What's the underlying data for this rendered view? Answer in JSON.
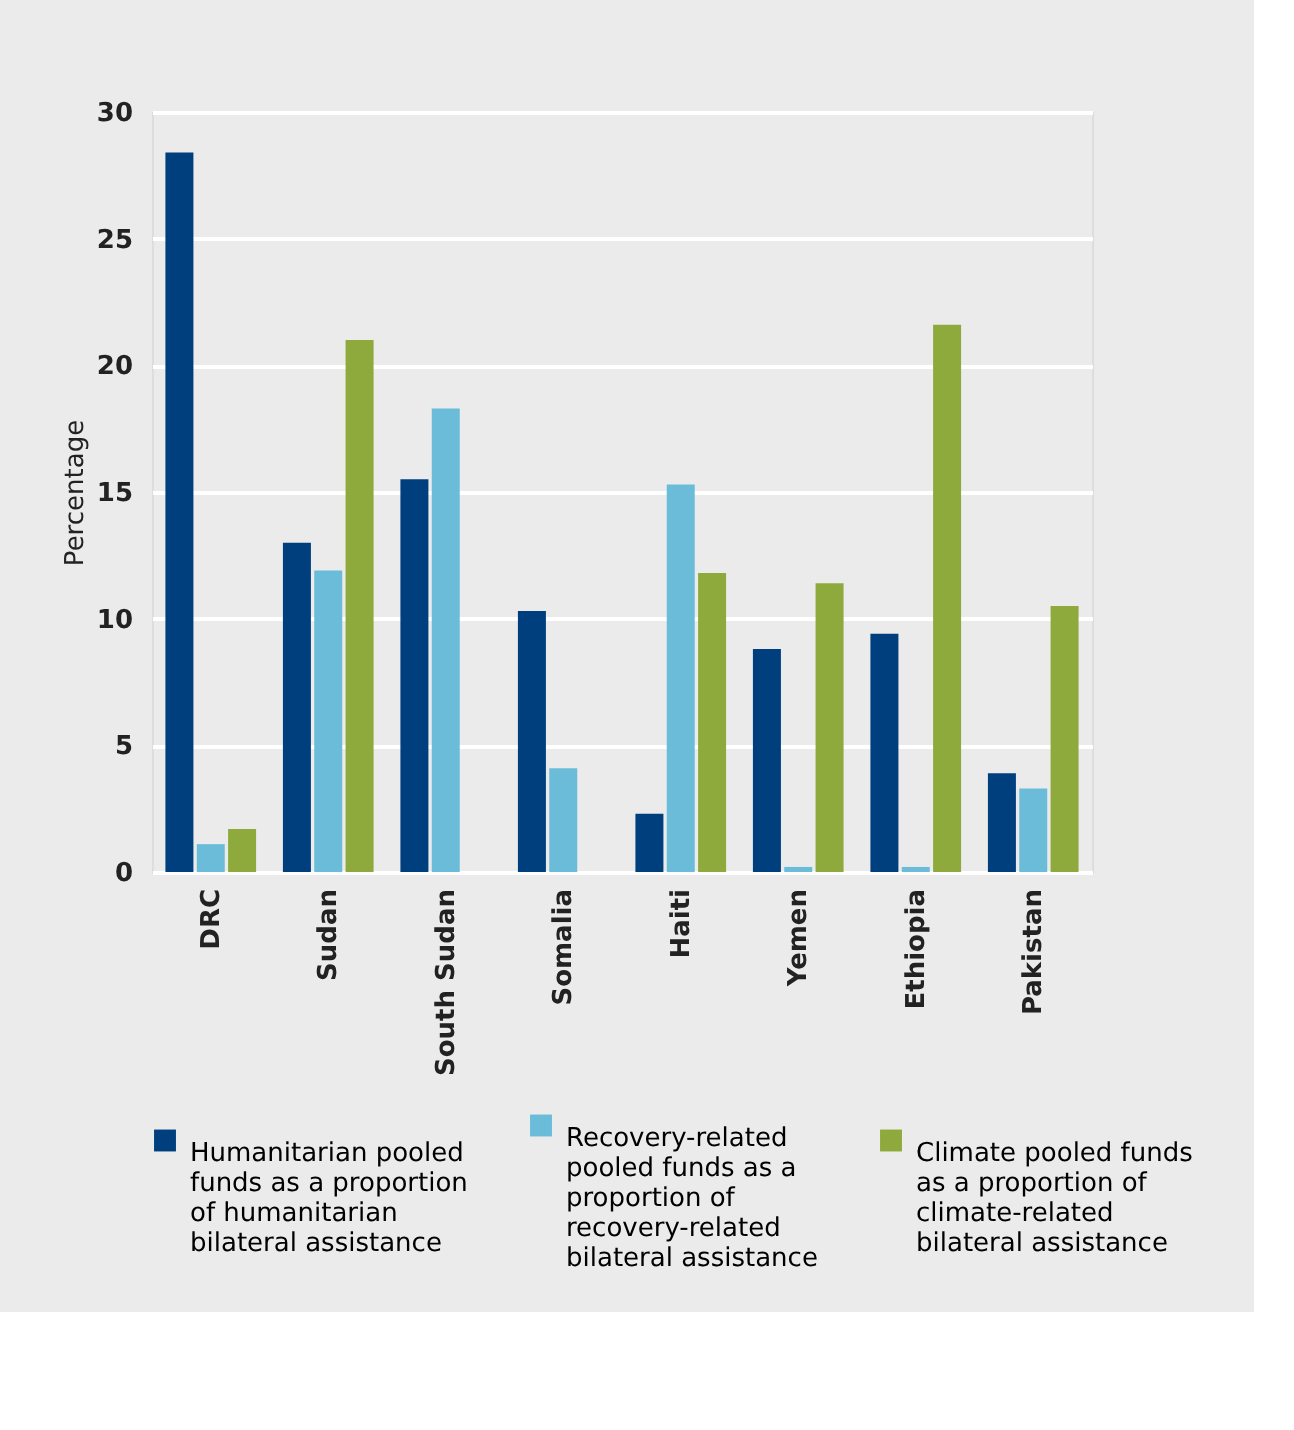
{
  "chart_data": {
    "type": "bar",
    "ylabel": "Percentage",
    "categories": [
      "DRC",
      "Sudan",
      "South Sudan",
      "Somalia",
      "Haiti",
      "Yemen",
      "Ethiopia",
      "Pakistan"
    ],
    "series": [
      {
        "name": "Humanitarian pooled funds as a proportion of humanitarian bilateral assistance",
        "color": "#003f7d",
        "values": [
          28.4,
          13.0,
          15.5,
          10.3,
          2.3,
          8.8,
          9.4,
          3.9
        ]
      },
      {
        "name": "Recovery-related pooled funds as a proportion of recovery-related bilateral assistance",
        "color": "#6bbcd9",
        "values": [
          1.1,
          11.9,
          18.3,
          4.1,
          15.3,
          0.2,
          0.2,
          3.3
        ]
      },
      {
        "name": "Climate pooled funds as a proportion of climate-related bilateral assistance",
        "color": "#8faa3c",
        "values": [
          1.7,
          21.0,
          null,
          null,
          11.8,
          11.4,
          21.6,
          10.5
        ]
      }
    ],
    "ylim": [
      0,
      30
    ],
    "yticks": [
      0,
      5,
      10,
      15,
      20,
      25,
      30
    ],
    "grid": "y",
    "legend": "bottom"
  }
}
